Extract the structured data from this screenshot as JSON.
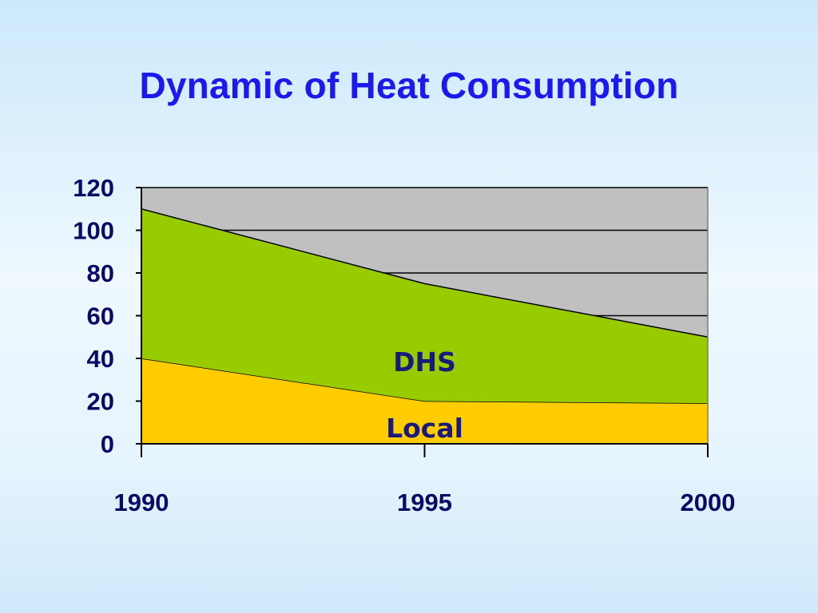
{
  "title": "Dynamic of Heat Consumption",
  "colors": {
    "plot_background": "#c0c0c0",
    "local_fill": "#ffcc00",
    "dhs_fill": "#99cc00",
    "title": "#1a1aee",
    "axis_text": "#0a0a66"
  },
  "chart_data": {
    "type": "area",
    "stacked": true,
    "title": "Dynamic of Heat Consumption",
    "xlabel": "",
    "ylabel": "",
    "x": [
      1990,
      1995,
      2000
    ],
    "x_tick_labels": [
      "1990",
      "1995",
      "2000"
    ],
    "ylim": [
      0,
      120
    ],
    "y_ticks": [
      0,
      20,
      40,
      60,
      80,
      100,
      120
    ],
    "y_tick_labels": [
      "0",
      "20",
      "40",
      "60",
      "80",
      "100",
      "120"
    ],
    "grid": true,
    "legend": "none",
    "series": [
      {
        "name": "Local",
        "values": [
          40,
          20,
          19
        ],
        "color": "#ffcc00"
      },
      {
        "name": "DHS",
        "values": [
          70,
          55,
          31
        ],
        "color": "#99cc00"
      }
    ]
  }
}
